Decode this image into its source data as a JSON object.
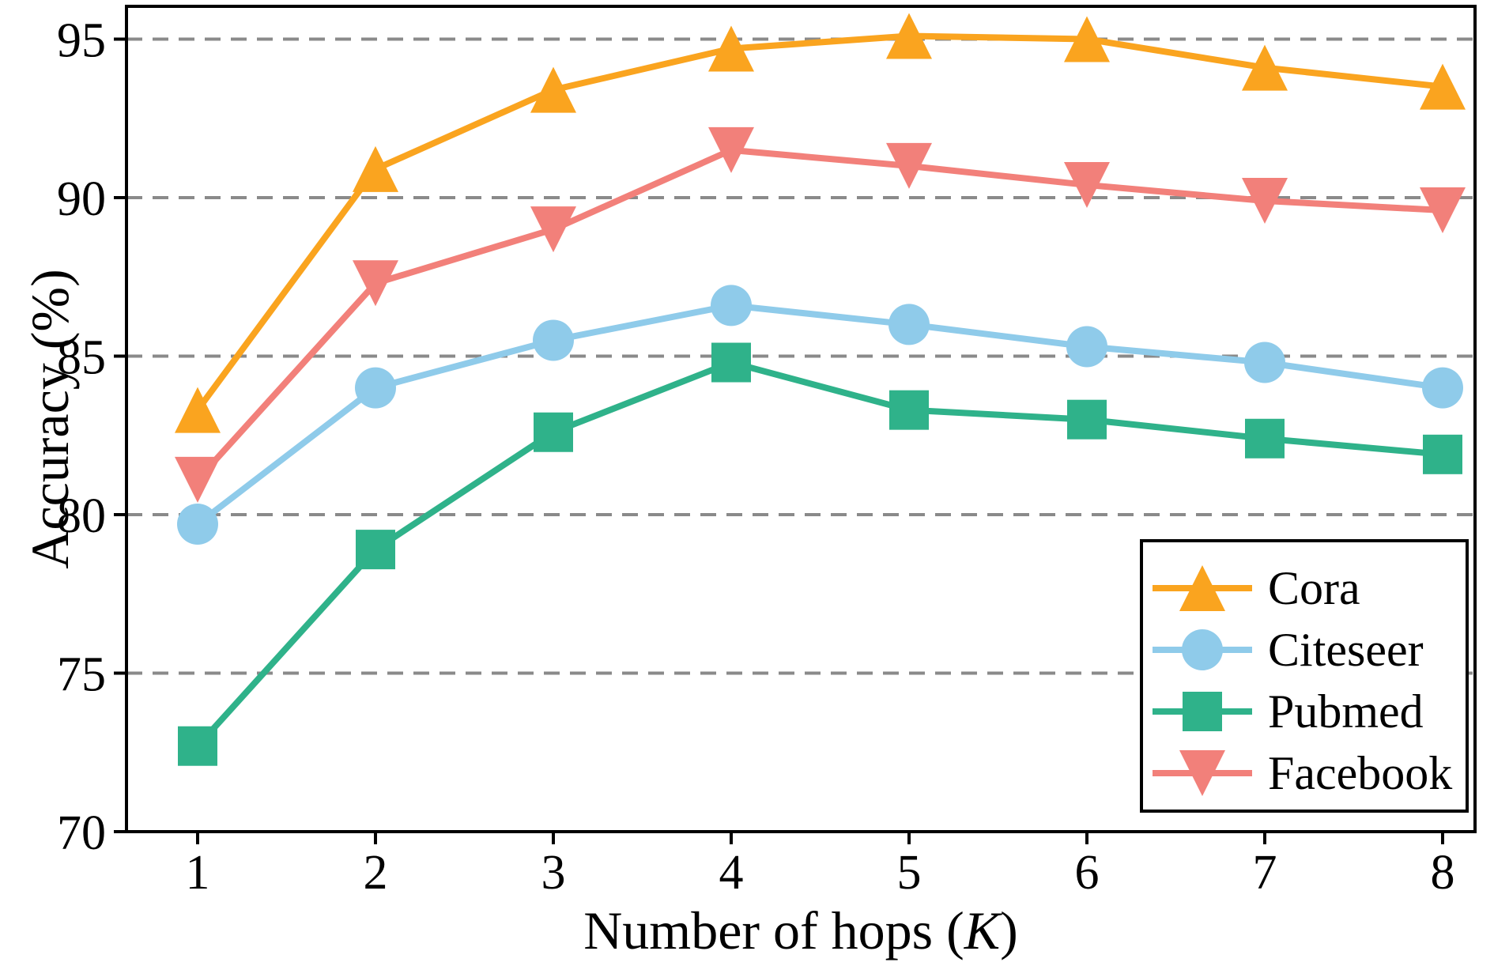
{
  "chart_data": {
    "type": "line",
    "title": "",
    "xlabel": "Number of hops (K)",
    "xlabel_parts": [
      "Number of hops (",
      "K",
      ")"
    ],
    "ylabel": "Accuracy (%)",
    "x": [
      1,
      2,
      3,
      4,
      5,
      6,
      7,
      8
    ],
    "xtick_labels": [
      "1",
      "2",
      "3",
      "4",
      "5",
      "6",
      "7",
      "8"
    ],
    "ytick_values": [
      70,
      75,
      80,
      85,
      90,
      95
    ],
    "ytick_labels": [
      "70",
      "75",
      "80",
      "85",
      "90",
      "95"
    ],
    "xlim": [
      0.6,
      8.18
    ],
    "ylim": [
      70,
      96.2
    ],
    "grid": {
      "horizontal": true,
      "vertical": false,
      "style": "dashed",
      "color": "#8A8A8A"
    },
    "legend": {
      "position": "lower-right",
      "border_color": "#000000",
      "background": "#FFFFFF"
    },
    "series": [
      {
        "name": "Cora",
        "color": "#FAA41F",
        "marker": "triangle-up",
        "values": [
          83.3,
          90.9,
          93.4,
          94.7,
          95.1,
          95.0,
          94.1,
          93.5
        ]
      },
      {
        "name": "Citeseer",
        "color": "#8FCBEA",
        "marker": "circle",
        "values": [
          79.7,
          84.0,
          85.5,
          86.6,
          86.0,
          85.3,
          84.8,
          84.0
        ]
      },
      {
        "name": "Pubmed",
        "color": "#2FB28A",
        "marker": "square",
        "values": [
          72.7,
          78.9,
          82.6,
          84.8,
          83.3,
          83.0,
          82.4,
          81.9
        ]
      },
      {
        "name": "Facebook",
        "color": "#F2807A",
        "marker": "triangle-down",
        "values": [
          81.1,
          87.3,
          89.0,
          91.5,
          91.0,
          90.4,
          89.9,
          89.6
        ]
      }
    ],
    "axis_color": "#000000",
    "background": "#FFFFFF"
  }
}
